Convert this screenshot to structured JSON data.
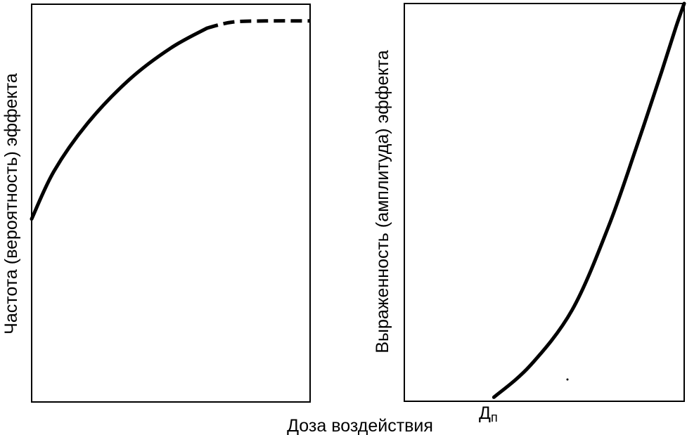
{
  "chart_data": [
    {
      "type": "line",
      "title": "",
      "xlabel": "",
      "ylabel": "Частота (вероятность) эффекта",
      "xlim": [
        0,
        1
      ],
      "ylim": [
        0,
        1
      ],
      "grid": false,
      "series": [
        {
          "style": "solid",
          "points": [
            {
              "x": 0.0,
              "y": 0.46
            },
            {
              "x": 0.08,
              "y": 0.58
            },
            {
              "x": 0.2,
              "y": 0.7
            },
            {
              "x": 0.35,
              "y": 0.81
            },
            {
              "x": 0.5,
              "y": 0.89
            },
            {
              "x": 0.63,
              "y": 0.94
            }
          ]
        },
        {
          "style": "dashed",
          "points": [
            {
              "x": 0.63,
              "y": 0.94
            },
            {
              "x": 0.72,
              "y": 0.955
            },
            {
              "x": 0.84,
              "y": 0.958
            },
            {
              "x": 1.0,
              "y": 0.958
            }
          ]
        }
      ]
    },
    {
      "type": "line",
      "title": "",
      "xlabel": "",
      "ylabel": "Выраженность (амплитуда) эффекта",
      "xlim": [
        0,
        1
      ],
      "ylim": [
        0,
        1
      ],
      "grid": false,
      "annotations": [
        "Дп"
      ],
      "threshold_x": 0.32,
      "series": [
        {
          "style": "solid",
          "points": [
            {
              "x": 0.32,
              "y": 0.01
            },
            {
              "x": 0.45,
              "y": 0.09
            },
            {
              "x": 0.6,
              "y": 0.23
            },
            {
              "x": 0.73,
              "y": 0.44
            },
            {
              "x": 0.83,
              "y": 0.64
            },
            {
              "x": 0.92,
              "y": 0.83
            },
            {
              "x": 0.97,
              "y": 0.94
            },
            {
              "x": 1.0,
              "y": 1.0
            }
          ]
        }
      ]
    }
  ],
  "shared_xlabel": "Доза воздействия",
  "threshold_label": {
    "main": "Д",
    "subscript": "п"
  }
}
